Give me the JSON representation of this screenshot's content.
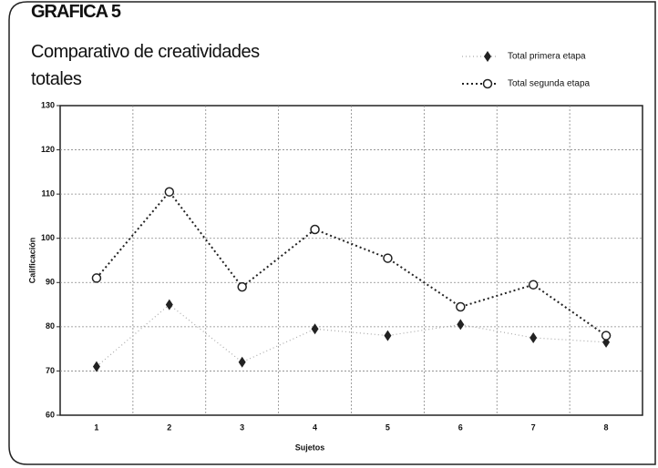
{
  "chart_data": {
    "type": "line",
    "heading": "GRAFICA 5",
    "title": "Comparativo de creatividades totales",
    "x_label": "Sujetos",
    "y_label": "Calificación",
    "categories": [
      "1",
      "2",
      "3",
      "4",
      "5",
      "6",
      "7",
      "8"
    ],
    "series": [
      {
        "name": "Total primera etapa",
        "color": "#222222",
        "marker": "diamond",
        "values": [
          71,
          85,
          72,
          79.5,
          78,
          80.5,
          77.5,
          76.5
        ]
      },
      {
        "name": "Total segunda etapa",
        "color": "#222222",
        "marker": "circle",
        "values": [
          91,
          110.5,
          89,
          102,
          95.5,
          84.5,
          89.5,
          78
        ]
      }
    ],
    "ylim": [
      60,
      130
    ],
    "yticks": [
      60,
      70,
      80,
      90,
      100,
      110,
      120,
      130
    ],
    "grid": true,
    "legend": "top-right"
  }
}
